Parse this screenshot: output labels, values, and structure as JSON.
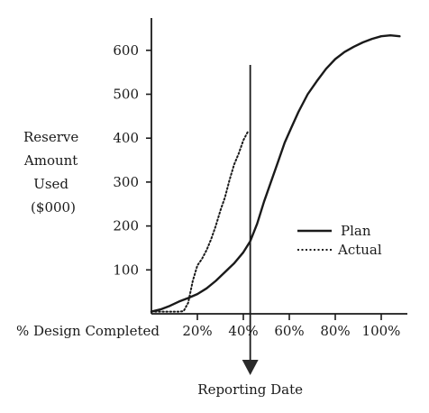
{
  "chart_data": {
    "type": "line",
    "title": "",
    "ylabel_lines": [
      "Reserve",
      "Amount",
      "Used",
      "($000)"
    ],
    "xlabel": "% Design Completed",
    "x_unit": "percent design completed",
    "xlim": [
      0,
      110
    ],
    "ylim": [
      0,
      640
    ],
    "y_ticks": [
      100,
      200,
      300,
      400,
      500,
      600
    ],
    "y_tick_labels": [
      "100",
      "200",
      "300",
      "400",
      "500",
      "600"
    ],
    "x_ticks": [
      20,
      40,
      60,
      80,
      100
    ],
    "x_tick_labels": [
      "20%",
      "40%",
      "60%",
      "80%",
      "100%"
    ],
    "grid": false,
    "legend_position": "right",
    "series": [
      {
        "name": "Plan",
        "style": "solid",
        "x": [
          0,
          4,
          8,
          12,
          16,
          20,
          24,
          28,
          32,
          36,
          40,
          43,
          46,
          49,
          52,
          55,
          58,
          61,
          64,
          68,
          72,
          76,
          80,
          84,
          88,
          92,
          96,
          100,
          104,
          108
        ],
        "y": [
          5,
          10,
          18,
          28,
          36,
          45,
          58,
          75,
          95,
          115,
          140,
          165,
          205,
          255,
          300,
          345,
          390,
          425,
          460,
          500,
          530,
          558,
          580,
          596,
          608,
          618,
          626,
          632,
          634,
          632
        ]
      },
      {
        "name": "Actual",
        "style": "dotted",
        "x": [
          0,
          4,
          8,
          12,
          14,
          16,
          18,
          20,
          22,
          24,
          26,
          28,
          30,
          32,
          34,
          36,
          38,
          40,
          42
        ],
        "y": [
          5,
          5,
          5,
          5,
          6,
          25,
          75,
          110,
          125,
          145,
          170,
          200,
          235,
          265,
          305,
          340,
          365,
          395,
          415
        ]
      }
    ],
    "marker": {
      "label": "Reporting Date",
      "x": 43
    }
  }
}
